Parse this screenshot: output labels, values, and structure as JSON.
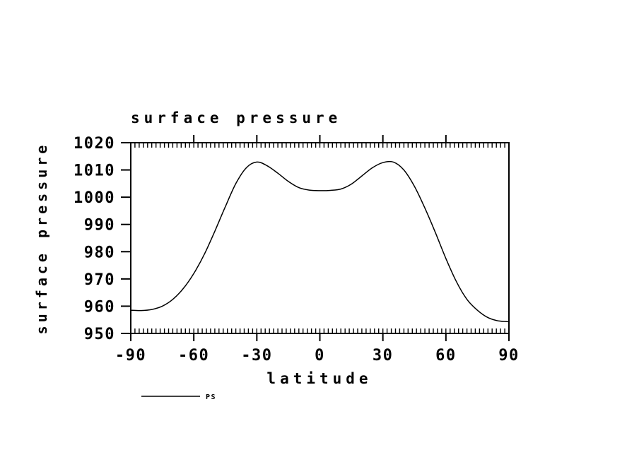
{
  "colors": {
    "background": "#ffffff",
    "axis": "#000000",
    "line": "#000000"
  },
  "chart_data": {
    "type": "line",
    "title": "surface pressure",
    "xlabel": "latitude",
    "ylabel": "surface pressure",
    "xlim": [
      -90,
      90
    ],
    "ylim": [
      950,
      1020
    ],
    "x_ticks": [
      -90,
      -60,
      -30,
      0,
      30,
      60,
      90
    ],
    "y_ticks": [
      950,
      960,
      970,
      980,
      990,
      1000,
      1010,
      1020
    ],
    "x_minor_step": 2,
    "grid": false,
    "legend_position": "bottom-left",
    "legend": [
      {
        "label": "PS",
        "color": "#000000"
      }
    ],
    "series": [
      {
        "name": "PS",
        "color": "#000000",
        "x": [
          -90,
          -85,
          -80,
          -75,
          -70,
          -65,
          -60,
          -55,
          -50,
          -45,
          -40,
          -35,
          -30,
          -25,
          -20,
          -15,
          -10,
          -5,
          0,
          5,
          10,
          15,
          20,
          25,
          30,
          35,
          40,
          45,
          50,
          55,
          60,
          65,
          70,
          75,
          80,
          85,
          90
        ],
        "y": [
          958.5,
          958.4,
          958.8,
          960.0,
          962.5,
          966.5,
          972.0,
          979.0,
          987.5,
          996.5,
          1005.0,
          1010.8,
          1012.9,
          1011.5,
          1008.8,
          1005.8,
          1003.5,
          1002.6,
          1002.4,
          1002.5,
          1003.0,
          1004.8,
          1007.8,
          1010.8,
          1012.7,
          1012.9,
          1010.0,
          1004.0,
          996.0,
          987.0,
          977.5,
          969.0,
          962.5,
          958.5,
          955.8,
          954.6,
          954.3
        ]
      }
    ]
  }
}
